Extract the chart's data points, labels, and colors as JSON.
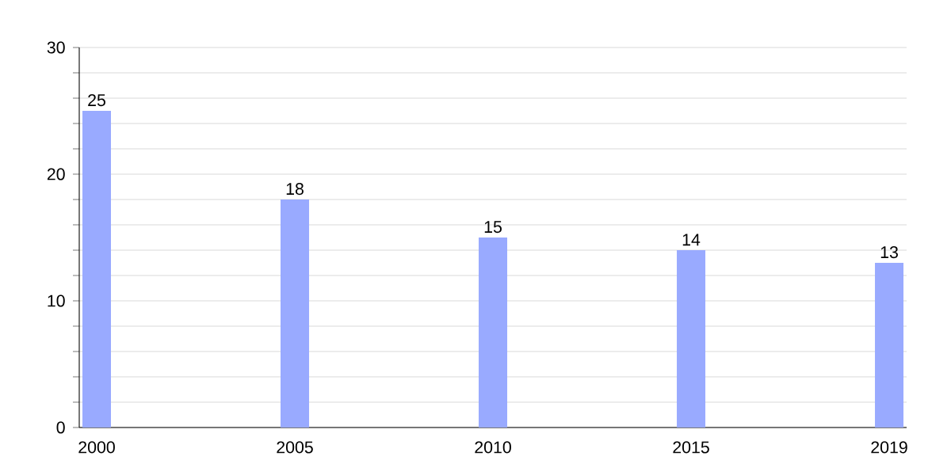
{
  "chart_data": {
    "type": "bar",
    "categories": [
      "2000",
      "2005",
      "2010",
      "2015",
      "2019"
    ],
    "values": [
      25,
      18,
      15,
      14,
      13
    ],
    "color": "#99aaff",
    "ylim": [
      0,
      30
    ],
    "yticks": [
      0,
      {
        "value": 2,
        "label": null
      },
      {
        "value": 4,
        "label": null
      },
      {
        "value": 6,
        "label": null
      },
      {
        "value": 8,
        "label": null
      },
      10,
      {
        "value": 12,
        "label": null
      },
      {
        "value": 14,
        "label": null
      },
      {
        "value": 16,
        "label": null
      },
      {
        "value": 18,
        "label": null
      },
      20,
      {
        "value": 22,
        "label": null
      },
      {
        "value": 24,
        "label": null
      },
      {
        "value": 26,
        "label": null
      },
      {
        "value": 28,
        "label": null
      },
      30
    ],
    "grid": "y",
    "data_labels": true
  }
}
